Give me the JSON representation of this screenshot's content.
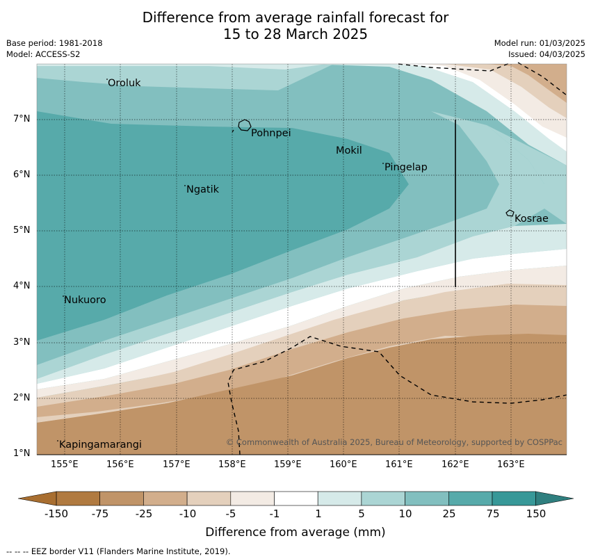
{
  "header": {
    "title_line1": "Difference from average rainfall forecast for",
    "title_line2": "15 to 28 March 2025",
    "base_period": "Base period: 1981-2018",
    "model": "Model: ACCESS-S2",
    "model_run": "Model run: 01/03/2025",
    "issued": "Issued: 04/03/2025"
  },
  "map": {
    "lat_labels": [
      "7°N",
      "6°N",
      "5°N",
      "4°N",
      "3°N",
      "2°N",
      "1°N"
    ],
    "lon_labels": [
      "155°E",
      "156°E",
      "157°E",
      "158°E",
      "159°E",
      "160°E",
      "161°E",
      "162°E",
      "163°E"
    ],
    "places": {
      "oroluk": "Oroluk",
      "pohnpei": "Pohnpei",
      "mokil": "Mokil",
      "pingelap": "Pingelap",
      "ngatik": "Ngatik",
      "kosrae": "Kosrae",
      "nukuoro": "Nukuoro",
      "kapingamarangi": "Kapingamarangi"
    },
    "copyright": "© Commonwealth of Australia 2025, Bureau of Meteorology, supported by COSPPac"
  },
  "colorbar": {
    "labels": [
      "-150",
      "-75",
      "-25",
      "-10",
      "-5",
      "-1",
      "1",
      "5",
      "10",
      "25",
      "75",
      "150"
    ],
    "colors": [
      "#b07a40",
      "#c09468",
      "#d2ae8c",
      "#e4d0bc",
      "#f3ebe4",
      "#ffffff",
      "#d6eae9",
      "#abd5d4",
      "#82bfbf",
      "#57aaaa",
      "#379898"
    ],
    "title": "Difference from average (mm)"
  },
  "footer": {
    "eez_note": "--  --  -- EEZ border V11 (Flanders Marine Institute, 2019)."
  }
}
